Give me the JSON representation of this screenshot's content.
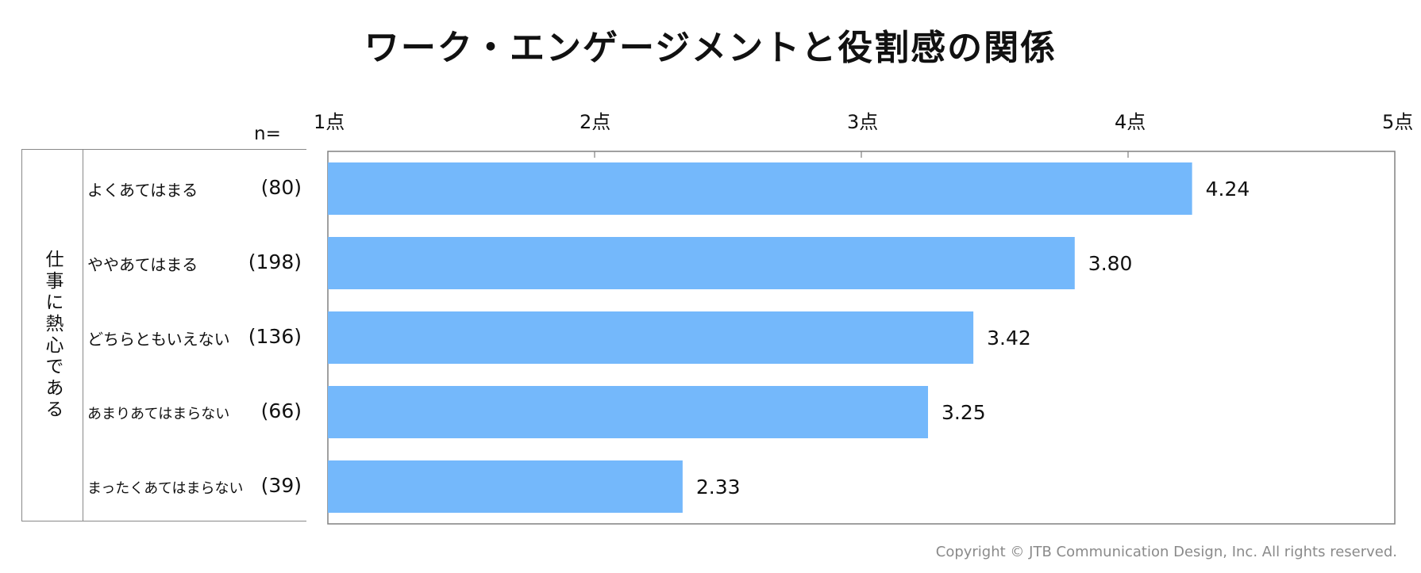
{
  "title": "ワーク・エンゲージメントと役割感の関係",
  "n_label": "n=",
  "group_label": "仕事に熱心である",
  "copyright": "Copyright © JTB Communication Design, Inc. All rights reserved.",
  "colors": {
    "bar": "#74b8fb",
    "axis": "#808080",
    "tick": "#808080"
  },
  "chart_data": {
    "type": "bar",
    "orientation": "horizontal",
    "title": "ワーク・エンゲージメントと役割感の関係",
    "xlim": [
      1,
      5
    ],
    "xticks": [
      "1点",
      "2点",
      "3点",
      "4点",
      "5点"
    ],
    "categories": [
      "よくあてはまる",
      "ややあてはまる",
      "どちらともいえない",
      "あまりあてはまらない",
      "まったくあてはまらない"
    ],
    "n": [
      "(80)",
      "(198)",
      "(136)",
      "(66)",
      "(39)"
    ],
    "values": [
      4.24,
      3.8,
      3.42,
      3.25,
      2.33
    ],
    "value_labels": [
      "4.24",
      "3.80",
      "3.42",
      "3.25",
      "2.33"
    ],
    "grid": false
  }
}
